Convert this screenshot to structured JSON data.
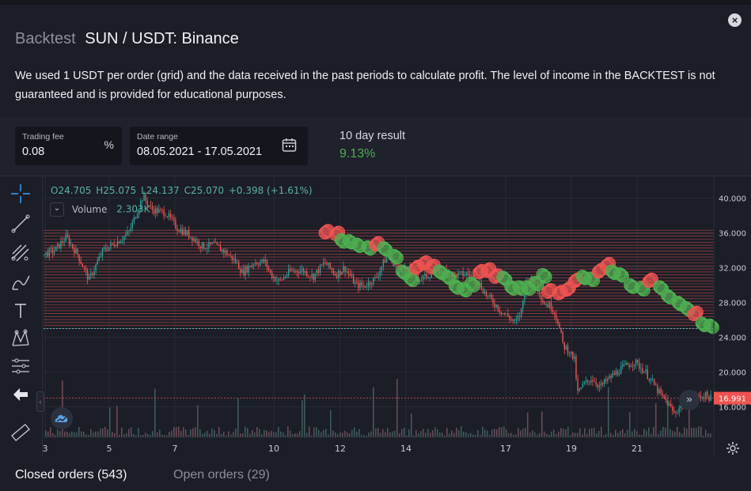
{
  "modal": {
    "close_symbol": "×",
    "title_prefix": "Backtest",
    "title_main": "SUN / USDT: Binance",
    "description": "We used 1 USDT per order (grid) and the data received in the past periods to calculate profit. The level of income in the BACKTEST is not guaranteed and is provided for educational purposes."
  },
  "controls": {
    "trading_fee": {
      "label": "Trading fee",
      "value": "0.08",
      "unit": "%"
    },
    "date_range": {
      "label": "Date range",
      "value": "08.05.2021 - 17.05.2021",
      "icon": "calendar-icon"
    },
    "result": {
      "label": "10 day result",
      "value": "9.13%"
    }
  },
  "chart": {
    "legend": {
      "open": "O24.705",
      "high": "H25.075",
      "low": "L24.137",
      "close": "C25.070",
      "change": "+0.398 (+1.61%)"
    },
    "volume": {
      "toggle": "⌄",
      "label": "Volume",
      "value": "2.303K"
    },
    "last_price": "16.991",
    "collapse_symbol": "‹",
    "scroll_symbol": "»",
    "tools": [
      "crosshair-icon",
      "trend-line-icon",
      "pitchfork-icon",
      "brush-icon",
      "text-icon",
      "pattern-icon",
      "measure-icon",
      "back-arrow-icon",
      "ruler-icon"
    ],
    "colors": {
      "up": "#26a69a",
      "down": "#ef5350",
      "grid_line": "#ef5350",
      "buy_marker": "#4caf50",
      "sell_marker": "#ef5350",
      "result_positive": "#4caf50"
    }
  },
  "chart_data": {
    "type": "candlestick",
    "x_ticks": [
      "3",
      "5",
      "7",
      "10",
      "12",
      "14",
      "17",
      "19",
      "21"
    ],
    "y_ticks": [
      "40.000",
      "36.000",
      "32.000",
      "28.000",
      "24.000",
      "20.000",
      "16.000"
    ],
    "ylim": [
      12.5,
      42.5
    ],
    "grid_range": [
      25.0,
      36.3
    ],
    "grid_levels": 34,
    "price_path": [
      [
        0,
        33.5
      ],
      [
        40,
        34
      ],
      [
        80,
        35.5
      ],
      [
        120,
        33.5
      ],
      [
        160,
        30.6
      ],
      [
        210,
        34
      ],
      [
        260,
        35
      ],
      [
        300,
        36
      ],
      [
        330,
        38.5
      ],
      [
        350,
        40.2
      ],
      [
        380,
        38.7
      ],
      [
        430,
        38.3
      ],
      [
        470,
        36.6
      ],
      [
        520,
        35.6
      ],
      [
        560,
        34.4
      ],
      [
        600,
        34.6
      ],
      [
        640,
        33.8
      ],
      [
        680,
        32.6
      ],
      [
        700,
        31.4
      ],
      [
        740,
        32.6
      ],
      [
        780,
        32.7
      ],
      [
        800,
        31.2
      ],
      [
        830,
        30.4
      ],
      [
        870,
        31.6
      ],
      [
        910,
        31.7
      ],
      [
        950,
        31
      ],
      [
        990,
        32.6
      ],
      [
        1030,
        31.2
      ],
      [
        1060,
        32
      ],
      [
        1100,
        30
      ],
      [
        1130,
        29.9
      ],
      [
        1170,
        30.8
      ],
      [
        1210,
        33.4
      ],
      [
        1250,
        32
      ],
      [
        1290,
        31.6
      ],
      [
        1330,
        30.7
      ],
      [
        1370,
        31.4
      ],
      [
        1410,
        31.6
      ],
      [
        1450,
        31.1
      ],
      [
        1490,
        31.3
      ],
      [
        1530,
        30.4
      ],
      [
        1560,
        28.8
      ],
      [
        1590,
        27.8
      ],
      [
        1620,
        26.7
      ],
      [
        1640,
        26.3
      ],
      [
        1660,
        25.6
      ],
      [
        1680,
        26.7
      ],
      [
        1700,
        30.4
      ],
      [
        1730,
        30.6
      ],
      [
        1760,
        28
      ],
      [
        1790,
        27.5
      ],
      [
        1810,
        26
      ],
      [
        1830,
        23
      ],
      [
        1850,
        22.5
      ],
      [
        1870,
        21.3
      ],
      [
        1880,
        17.5
      ],
      [
        1900,
        18.5
      ],
      [
        1930,
        19.3
      ],
      [
        1960,
        18.3
      ],
      [
        2000,
        19.5
      ],
      [
        2040,
        20.5
      ],
      [
        2080,
        21.2
      ],
      [
        2120,
        20
      ],
      [
        2150,
        18.5
      ],
      [
        2170,
        17.5
      ],
      [
        2200,
        16.3
      ],
      [
        2220,
        15.2
      ],
      [
        2250,
        16.4
      ],
      [
        2290,
        17.1
      ],
      [
        2330,
        17.3
      ],
      [
        2350,
        17.0
      ]
    ],
    "trade_markers": [
      [
        1000,
        36.0,
        "sell"
      ],
      [
        1040,
        35.8,
        "sell"
      ],
      [
        1060,
        35.2,
        "buy"
      ],
      [
        1090,
        35.1,
        "buy"
      ],
      [
        1120,
        34.7,
        "buy"
      ],
      [
        1160,
        34.4,
        "buy"
      ],
      [
        1190,
        34.6,
        "sell"
      ],
      [
        1220,
        34.3,
        "buy"
      ],
      [
        1260,
        33.4,
        "buy"
      ],
      [
        1290,
        31.6,
        "buy"
      ],
      [
        1320,
        30.8,
        "buy"
      ],
      [
        1340,
        31.9,
        "sell"
      ],
      [
        1370,
        32.4,
        "sell"
      ],
      [
        1400,
        32.0,
        "sell"
      ],
      [
        1430,
        31.6,
        "buy"
      ],
      [
        1460,
        31.0,
        "buy"
      ],
      [
        1490,
        29.9,
        "buy"
      ],
      [
        1520,
        29.6,
        "buy"
      ],
      [
        1550,
        30.2,
        "buy"
      ],
      [
        1580,
        31.4,
        "sell"
      ],
      [
        1610,
        31.6,
        "sell"
      ],
      [
        1640,
        30.9,
        "sell"
      ],
      [
        1670,
        30.9,
        "buy"
      ],
      [
        1700,
        29.8,
        "buy"
      ],
      [
        1730,
        29.8,
        "buy"
      ],
      [
        1760,
        29.8,
        "buy"
      ],
      [
        1790,
        30.3,
        "buy"
      ],
      [
        1820,
        31.2,
        "buy"
      ],
      [
        1840,
        29.2,
        "sell"
      ],
      [
        1880,
        29.0,
        "sell"
      ],
      [
        1910,
        29.4,
        "sell"
      ],
      [
        1940,
        30.4,
        "sell"
      ],
      [
        1970,
        31.0,
        "buy"
      ],
      [
        2000,
        30.8,
        "buy"
      ],
      [
        2030,
        31.5,
        "sell"
      ],
      [
        2060,
        32.2,
        "sell"
      ],
      [
        2080,
        31.6,
        "buy"
      ],
      [
        2110,
        31.3,
        "buy"
      ],
      [
        2150,
        30.0,
        "buy"
      ],
      [
        2190,
        29.7,
        "buy"
      ],
      [
        2220,
        30.4,
        "sell"
      ],
      [
        2260,
        29.8,
        "buy"
      ],
      [
        2290,
        28.8,
        "buy"
      ],
      [
        2330,
        28.0,
        "buy"
      ],
      [
        2360,
        27.4,
        "buy"
      ],
      [
        2390,
        26.6,
        "sell"
      ],
      [
        2420,
        25.6,
        "buy"
      ],
      [
        2450,
        25.4,
        "buy"
      ]
    ]
  }
}
